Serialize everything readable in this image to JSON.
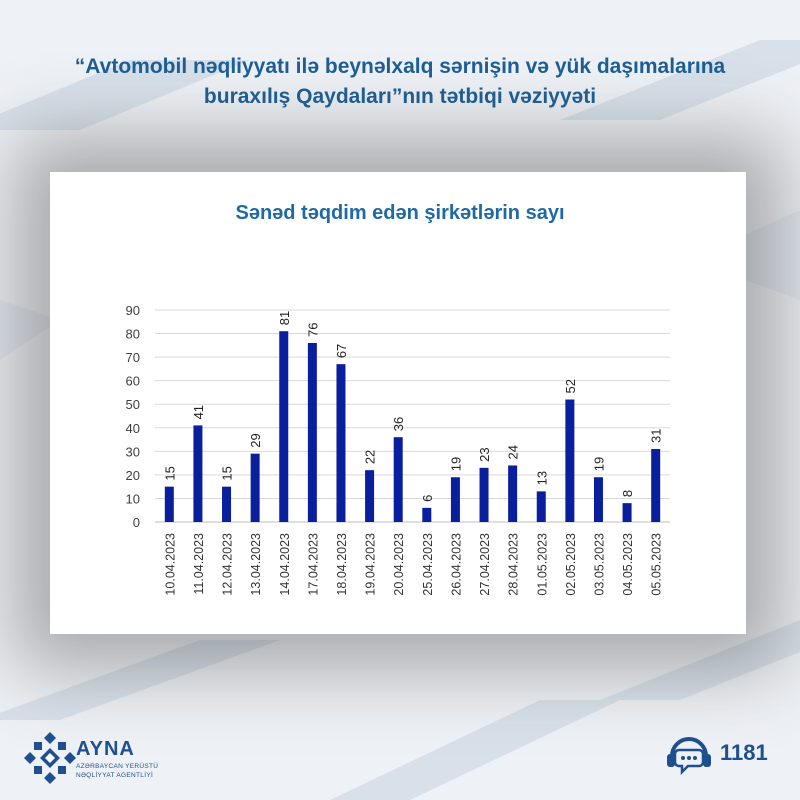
{
  "headline": {
    "line1": "“Avtomobil nəqliyyatı ilə beynəlxalq sərnişin və yük daşımalarına",
    "line2": "buraxılış Qaydaları”nın tətbiqi vəziyyəti"
  },
  "chart_data": {
    "type": "bar",
    "title": "Sənəd təqdim edən şirkətlərin sayı",
    "xlabel": "",
    "ylabel": "",
    "ylim": [
      0,
      90
    ],
    "ytick_step": 10,
    "grid": true,
    "legend": "none",
    "bar_color": "#0a1f9e",
    "categories": [
      "10.04.2023",
      "11.04.2023",
      "12.04.2023",
      "13.04.2023",
      "14.04.2023",
      "17.04.2023",
      "18.04.2023",
      "19.04.2023",
      "20.04.2023",
      "25.04.2023",
      "26.04.2023",
      "27.04.2023",
      "28.04.2023",
      "01.05.2023",
      "02.05.2023",
      "03.05.2023",
      "04.05.2023",
      "05.05.2023"
    ],
    "values": [
      15,
      41,
      15,
      29,
      81,
      76,
      67,
      22,
      36,
      6,
      19,
      23,
      24,
      13,
      52,
      19,
      8,
      31
    ]
  },
  "brand": {
    "name": "AYNA",
    "subtitle_line1": "AZƏRBAYCAN YERÜSTÜ",
    "subtitle_line2": "NƏQLİYYAT AGENTLİYİ",
    "accent_color": "#1f4f8f"
  },
  "hotline": {
    "icon": "headset-chat-icon",
    "number": "1181"
  }
}
